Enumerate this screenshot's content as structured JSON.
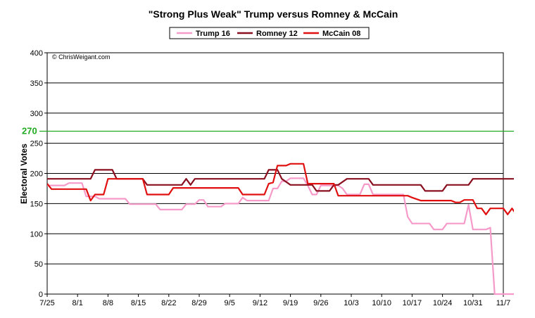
{
  "chart_data": {
    "type": "line",
    "title": "\"Strong Plus Weak\" Trump versus Romney & McCain",
    "ylabel": "Electoral Votes",
    "xlabel": "",
    "watermark": "© ChrisWeigant.com",
    "ylim": [
      0,
      400
    ],
    "yticks": [
      0,
      50,
      100,
      150,
      200,
      250,
      300,
      350,
      400
    ],
    "xlim": [
      0,
      105
    ],
    "xticks": [
      {
        "x": 0,
        "label": "7/25"
      },
      {
        "x": 7,
        "label": "8/1"
      },
      {
        "x": 14,
        "label": "8/8"
      },
      {
        "x": 21,
        "label": "8/15"
      },
      {
        "x": 28,
        "label": "8/22"
      },
      {
        "x": 35,
        "label": "8/29"
      },
      {
        "x": 42,
        "label": "9/5"
      },
      {
        "x": 49,
        "label": "9/12"
      },
      {
        "x": 56,
        "label": "9/19"
      },
      {
        "x": 63,
        "label": "9/26"
      },
      {
        "x": 70,
        "label": "10/3"
      },
      {
        "x": 77,
        "label": "10/10"
      },
      {
        "x": 84,
        "label": "10/17"
      },
      {
        "x": 91,
        "label": "10/24"
      },
      {
        "x": 98,
        "label": "10/31"
      },
      {
        "x": 105,
        "label": "11/7"
      }
    ],
    "grid": "horizontal",
    "legend_position": "top-center",
    "reference_line": {
      "value": 270,
      "label": "270",
      "color": "#22aa22"
    },
    "series": [
      {
        "name": "Trump 16",
        "color": "#f59ac9",
        "points": [
          [
            0,
            180
          ],
          [
            4,
            180
          ],
          [
            5,
            184
          ],
          [
            8,
            184
          ],
          [
            9,
            162
          ],
          [
            11,
            162
          ],
          [
            12,
            158
          ],
          [
            18,
            158
          ],
          [
            19,
            149
          ],
          [
            25,
            149
          ],
          [
            26,
            140
          ],
          [
            31,
            140
          ],
          [
            32,
            149
          ],
          [
            34,
            149
          ],
          [
            35,
            156
          ],
          [
            36,
            156
          ],
          [
            37,
            145
          ],
          [
            40,
            145
          ],
          [
            41,
            150
          ],
          [
            44,
            150
          ],
          [
            45,
            160
          ],
          [
            46,
            155
          ],
          [
            51,
            155
          ],
          [
            52,
            175
          ],
          [
            53,
            175
          ],
          [
            54,
            187
          ],
          [
            55,
            187
          ],
          [
            56,
            192
          ],
          [
            59,
            192
          ],
          [
            60,
            180
          ],
          [
            61,
            165
          ],
          [
            62,
            165
          ],
          [
            63,
            180
          ],
          [
            67,
            180
          ],
          [
            68,
            175
          ],
          [
            69,
            165
          ],
          [
            72,
            165
          ],
          [
            73,
            182
          ],
          [
            74,
            182
          ],
          [
            75,
            165
          ],
          [
            82,
            165
          ],
          [
            83,
            128
          ],
          [
            84,
            117
          ],
          [
            88,
            117
          ],
          [
            89,
            107
          ],
          [
            91,
            107
          ],
          [
            92,
            117
          ],
          [
            96,
            117
          ],
          [
            97,
            148
          ],
          [
            98,
            107
          ],
          [
            101,
            107
          ],
          [
            102,
            110
          ],
          [
            103,
            0
          ],
          [
            105,
            0
          ],
          [
            108,
            0
          ]
        ]
      },
      {
        "name": "Romney 12",
        "color": "#8a1020",
        "points": [
          [
            0,
            191
          ],
          [
            10,
            191
          ],
          [
            11,
            206
          ],
          [
            15,
            206
          ],
          [
            16,
            191
          ],
          [
            22,
            191
          ],
          [
            23,
            181
          ],
          [
            31,
            181
          ],
          [
            32,
            191
          ],
          [
            33,
            181
          ],
          [
            34,
            191
          ],
          [
            50,
            191
          ],
          [
            51,
            206
          ],
          [
            53,
            206
          ],
          [
            54,
            191
          ],
          [
            56,
            181
          ],
          [
            61,
            181
          ],
          [
            62,
            171
          ],
          [
            65,
            171
          ],
          [
            66,
            181
          ],
          [
            67,
            181
          ],
          [
            69,
            191
          ],
          [
            74,
            191
          ],
          [
            75,
            181
          ],
          [
            86,
            181
          ],
          [
            87,
            171
          ],
          [
            91,
            171
          ],
          [
            92,
            181
          ],
          [
            97,
            181
          ],
          [
            98,
            191
          ],
          [
            108,
            191
          ]
        ]
      },
      {
        "name": "McCain 08",
        "color": "#e01010",
        "points": [
          [
            0,
            183
          ],
          [
            1,
            174
          ],
          [
            9,
            174
          ],
          [
            10,
            155
          ],
          [
            11,
            165
          ],
          [
            13,
            165
          ],
          [
            14,
            191
          ],
          [
            22,
            191
          ],
          [
            23,
            165
          ],
          [
            28,
            165
          ],
          [
            29,
            176
          ],
          [
            44,
            176
          ],
          [
            45,
            165
          ],
          [
            50,
            165
          ],
          [
            51,
            183
          ],
          [
            52,
            185
          ],
          [
            53,
            213
          ],
          [
            55,
            213
          ],
          [
            56,
            216
          ],
          [
            59,
            216
          ],
          [
            60,
            183
          ],
          [
            66,
            183
          ],
          [
            67,
            163
          ],
          [
            83,
            163
          ],
          [
            84,
            160
          ],
          [
            86,
            155
          ],
          [
            93,
            155
          ],
          [
            94,
            152
          ],
          [
            95,
            152
          ],
          [
            96,
            156
          ],
          [
            98,
            156
          ],
          [
            99,
            142
          ],
          [
            100,
            142
          ],
          [
            101,
            132
          ],
          [
            102,
            142
          ],
          [
            105,
            142
          ],
          [
            106,
            132
          ],
          [
            107,
            142
          ],
          [
            108,
            132
          ],
          [
            109,
            132
          ]
        ]
      }
    ]
  }
}
